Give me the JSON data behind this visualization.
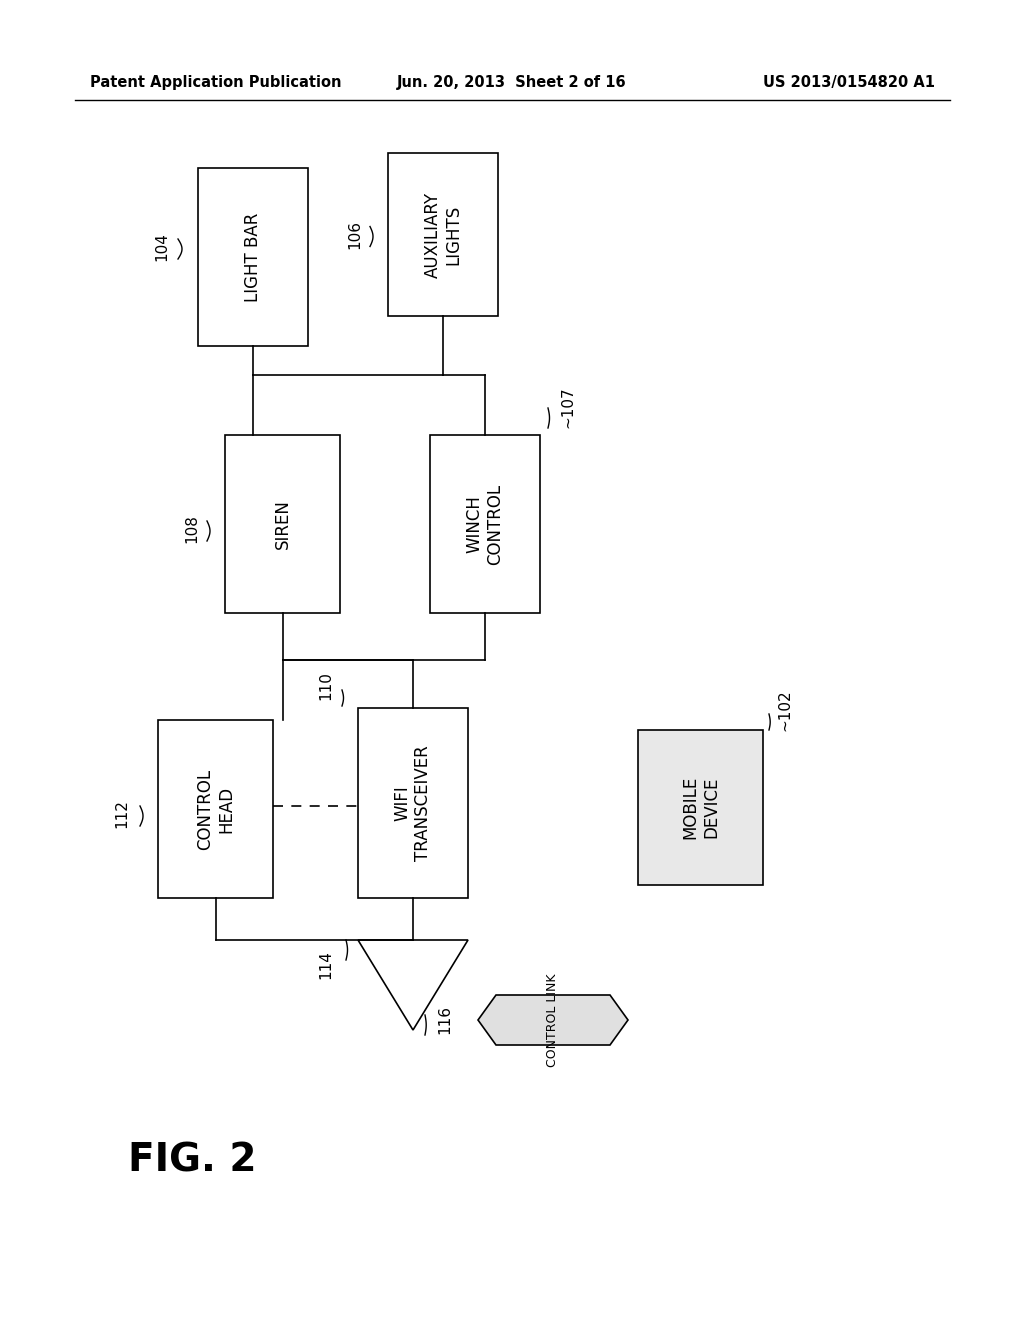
{
  "header_left": "Patent Application Publication",
  "header_mid": "Jun. 20, 2013  Sheet 2 of 16",
  "header_right": "US 2013/0154820 A1",
  "fig_label": "FIG. 2",
  "background": "#ffffff",
  "box_edge": "#000000",
  "lw": 1.2
}
